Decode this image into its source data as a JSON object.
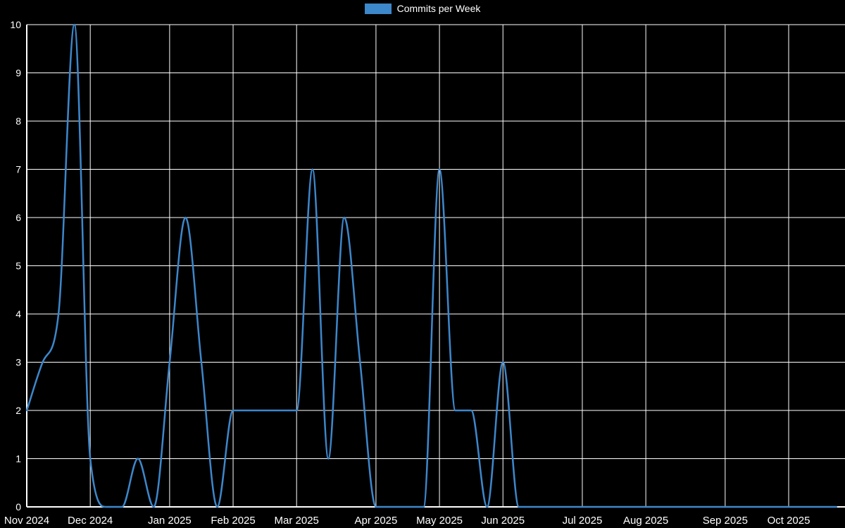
{
  "chart_data": {
    "type": "line",
    "title": "Commits per Week",
    "legend": [
      {
        "label": "Commits per Week",
        "color": "#3d87cb"
      }
    ],
    "line_color": "#3d87cb",
    "background_color": "#000000",
    "grid_color": "#ffffff",
    "axis_color": "#ffffff",
    "text_color": "#ffffff",
    "grid": true,
    "legend_position": "top-center",
    "smooth": true,
    "x_unit": "week",
    "ylim": [
      0,
      10
    ],
    "y_ticks": [
      0,
      1,
      2,
      3,
      4,
      5,
      6,
      7,
      8,
      9,
      10
    ],
    "x_ticks": [
      {
        "label": "Nov 2024",
        "week": 0
      },
      {
        "label": "Dec 2024",
        "week": 4
      },
      {
        "label": "Jan 2025",
        "week": 9
      },
      {
        "label": "Feb 2025",
        "week": 13
      },
      {
        "label": "Mar 2025",
        "week": 17
      },
      {
        "label": "Apr 2025",
        "week": 22
      },
      {
        "label": "May 2025",
        "week": 26
      },
      {
        "label": "Jun 2025",
        "week": 30
      },
      {
        "label": "Jul 2025",
        "week": 35
      },
      {
        "label": "Aug 2025",
        "week": 39
      },
      {
        "label": "Sep 2025",
        "week": 44
      },
      {
        "label": "Oct 2025",
        "week": 48
      }
    ],
    "weekly_values": [
      2,
      3,
      4,
      10,
      1,
      0,
      0,
      1,
      0,
      3,
      6,
      3,
      0,
      2,
      2,
      2,
      2,
      2,
      7,
      1,
      6,
      3,
      0,
      0,
      0,
      0,
      7,
      2,
      2,
      0,
      3,
      0,
      0,
      0,
      0,
      0,
      0,
      0,
      0,
      0,
      0,
      0,
      0,
      0,
      0,
      0,
      0,
      0,
      0,
      0,
      0,
      0
    ]
  }
}
